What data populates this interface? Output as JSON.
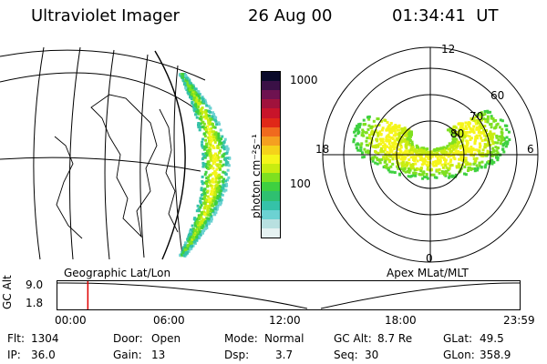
{
  "header": {
    "instrument": "Ultraviolet Imager",
    "date": "26 Aug 00",
    "time": "01:34:41  UT"
  },
  "map_left": {
    "caption": "Geographic Lat/Lon"
  },
  "map_right": {
    "caption": "Apex MLat/MLT",
    "mlt_labels": [
      "12",
      "18",
      "6",
      "0"
    ],
    "mlat_labels": [
      "60",
      "70",
      "80"
    ]
  },
  "colorbar": {
    "unit_label": "photon cm⁻²s⁻¹",
    "ticks": [
      "1000",
      "100"
    ],
    "colors": [
      "#e6f2f2",
      "#b8e0e0",
      "#6cd2d2",
      "#35c2a8",
      "#2fc070",
      "#3ed040",
      "#7ee020",
      "#c8ec10",
      "#f5f51a",
      "#f5d21a",
      "#f5a020",
      "#f06a1e",
      "#e02818",
      "#c8142a",
      "#a0123c",
      "#6e1250",
      "#3a1046",
      "#0a0a2a"
    ]
  },
  "timeline": {
    "axis_label": "GC Alt",
    "y_ticks": [
      "9.0",
      "1.8"
    ],
    "x_ticks": [
      "00:00",
      "06:00",
      "12:00",
      "18:00",
      "23:59"
    ],
    "current_time_fraction": 0.0658
  },
  "info": {
    "row1": [
      {
        "label": "Flt:",
        "value": "1304"
      },
      {
        "label": "Door:",
        "value": "Open"
      },
      {
        "label": "Mode:",
        "value": "Normal"
      },
      {
        "label": "GC Alt:",
        "value": "8.7 Re"
      },
      {
        "label": "GLat:",
        "value": "49.5"
      }
    ],
    "row2": [
      {
        "label": "IP:",
        "value": "36.0"
      },
      {
        "label": "Gain:",
        "value": "13"
      },
      {
        "label": "Dsp:",
        "value": "3.7"
      },
      {
        "label": "Seq:",
        "value": "30"
      },
      {
        "label": "GLon:",
        "value": "358.9"
      }
    ]
  }
}
